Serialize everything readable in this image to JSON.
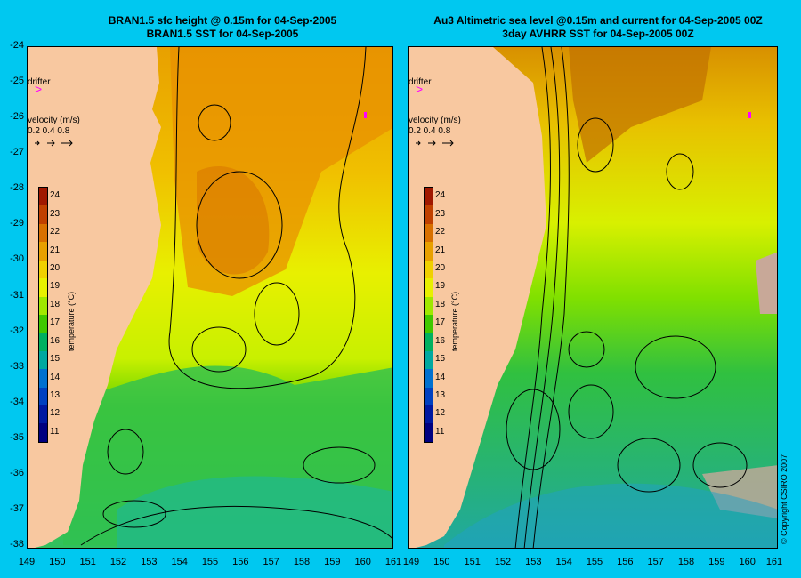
{
  "left_panel": {
    "title_line1": "BRAN1.5 sfc height @ 0.15m for 04-Sep-2005",
    "title_line2": "BRAN1.5 SST for 04-Sep-2005"
  },
  "right_panel": {
    "title_line1": "Au3 Altimetric sea level  @0.15m and current for 04-Sep-2005 00Z",
    "title_line2": "3day AVHRR SST for 04-Sep-2005 00Z"
  },
  "drifter_label": "drifter",
  "velocity": {
    "label": "velocity (m/s)",
    "scale": "0.2 0.4 0.8"
  },
  "colorbar": {
    "title": "temperature (°C)",
    "levels": [
      "24",
      "23",
      "22",
      "21",
      "20",
      "19",
      "18",
      "17",
      "16",
      "15",
      "14",
      "13",
      "12",
      "11"
    ],
    "colors": [
      "#a01800",
      "#c04000",
      "#d87000",
      "#e8a000",
      "#f0d000",
      "#e8f000",
      "#a0e800",
      "#40c800",
      "#00b060",
      "#00a8a0",
      "#0070d0",
      "#0040c0",
      "#0018a0",
      "#000080"
    ]
  },
  "y_ticks": [
    "-24",
    "-25",
    "-26",
    "-27",
    "-28",
    "-29",
    "-30",
    "-31",
    "-32",
    "-33",
    "-34",
    "-35",
    "-36",
    "-37",
    "-38"
  ],
  "x_ticks_left": [
    "149",
    "150",
    "151",
    "152",
    "153",
    "154",
    "155",
    "156",
    "157",
    "158",
    "159",
    "160",
    "161"
  ],
  "x_ticks_right": [
    "150",
    "151",
    "152",
    "153",
    "154",
    "155",
    "156",
    "157",
    "158",
    "159",
    "160",
    "161"
  ],
  "x_tick_right_first": "149",
  "copyright": "© Copyright CSIRO 2007",
  "colors": {
    "background": "#00c8f0",
    "land": "#f8c8a0",
    "drifter": "#ff00ff",
    "no_data": "#c8a898"
  }
}
